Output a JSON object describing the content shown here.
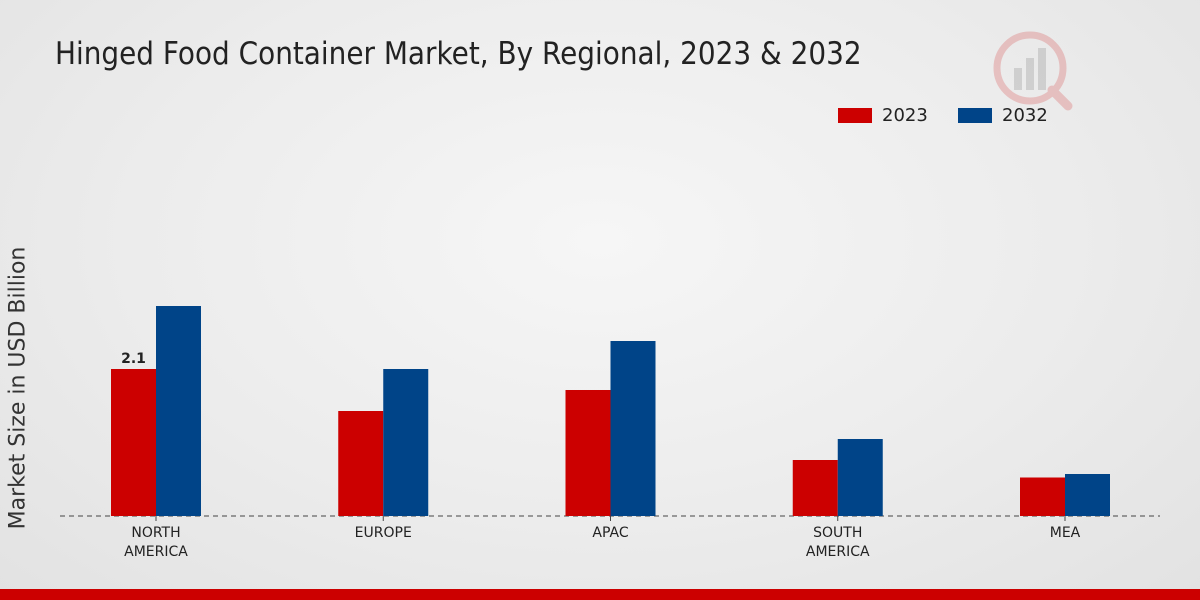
{
  "colors": {
    "series_2023": "#cc0000",
    "series_2032": "#004488",
    "bottom_bar": "#cc0000",
    "axis": "#444444"
  },
  "icons": {
    "watermark": "chart-logo-icon"
  },
  "chart_data": {
    "type": "bar",
    "title": "Hinged Food Container Market, By Regional, 2023 & 2032",
    "xlabel": "",
    "ylabel": "Market Size in USD Billion",
    "categories": [
      "NORTH\nAMERICA",
      "EUROPE",
      "APAC",
      "SOUTH\nAMERICA",
      "MEA"
    ],
    "series": [
      {
        "name": "2023",
        "values": [
          2.1,
          1.5,
          1.8,
          0.8,
          0.55
        ]
      },
      {
        "name": "2032",
        "values": [
          3.0,
          2.1,
          2.5,
          1.1,
          0.6
        ]
      }
    ],
    "data_labels": [
      {
        "series": 0,
        "category": 0,
        "text": "2.1"
      }
    ],
    "ylim": [
      0,
      3.0
    ],
    "legend_position": "top-right",
    "grid": false
  }
}
